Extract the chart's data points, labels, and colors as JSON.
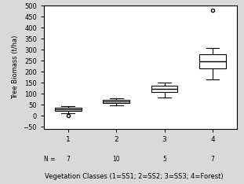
{
  "title": "",
  "ylabel": "Tree Biomass (t/ha)",
  "xlabel": "Vegetation Classes (1=SS1; 2=SS2; 3=SS3; 4=Forest)",
  "ylim": [
    -60,
    500
  ],
  "yticks": [
    -50,
    0,
    50,
    100,
    150,
    200,
    250,
    300,
    350,
    400,
    450,
    500
  ],
  "categories": [
    1,
    2,
    3,
    4
  ],
  "n_labels": [
    "7",
    "10",
    "5",
    "7"
  ],
  "box_data": {
    "1": {
      "med": 30,
      "q1": 20,
      "q3": 35,
      "whislo": 12,
      "whishi": 42,
      "fliers": [
        0
      ]
    },
    "2": {
      "med": 65,
      "q1": 58,
      "q3": 70,
      "whislo": 45,
      "whishi": 78,
      "fliers": []
    },
    "3": {
      "med": 120,
      "q1": 108,
      "q3": 135,
      "whislo": 83,
      "whishi": 150,
      "fliers": []
    },
    "4": {
      "med": 245,
      "q1": 215,
      "q3": 278,
      "whislo": 165,
      "whishi": 307,
      "fliers": [
        480
      ]
    }
  },
  "box_color": "#ffffff",
  "median_color": "#000000",
  "whisker_color": "#000000",
  "flier_marker": "o",
  "flier_size": 3,
  "background_color": "#ffffff",
  "fig_background": "#d9d9d9"
}
